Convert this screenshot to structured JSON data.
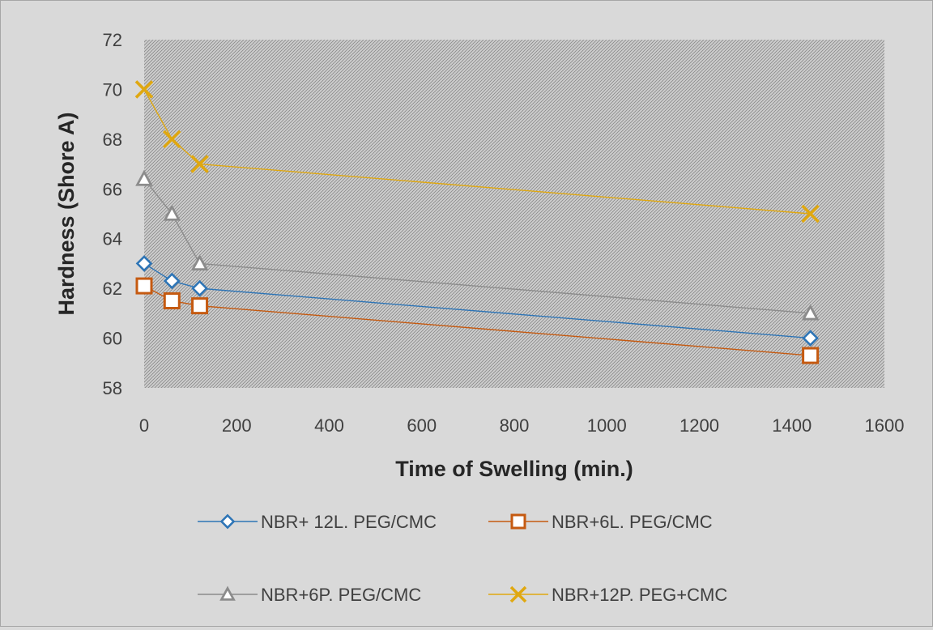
{
  "chart_data": {
    "type": "line",
    "title": "",
    "xlabel": "Time of Swelling (min.)",
    "ylabel": "Hardness (Shore A)",
    "xlim": [
      0,
      1600
    ],
    "ylim": [
      58,
      72
    ],
    "x_ticks": [
      0,
      200,
      400,
      600,
      800,
      1000,
      1200,
      1400,
      1600
    ],
    "y_ticks": [
      58,
      60,
      62,
      64,
      66,
      68,
      70,
      72
    ],
    "legend_position": "bottom",
    "plot_background": "hatched",
    "series": [
      {
        "name": "NBR+ 12L. PEG/CMC",
        "color": "#2e75b6",
        "marker": "diamond",
        "points": [
          [
            0,
            63
          ],
          [
            60,
            62.3
          ],
          [
            120,
            62
          ],
          [
            1440,
            60
          ]
        ]
      },
      {
        "name": "NBR+6L. PEG/CMC",
        "color": "#c55a11",
        "marker": "square",
        "points": [
          [
            0,
            62.1
          ],
          [
            60,
            61.5
          ],
          [
            120,
            61.3
          ],
          [
            1440,
            59.3
          ]
        ]
      },
      {
        "name": "NBR+6P. PEG/CMC",
        "color": "#8c8c8c",
        "marker": "triangle",
        "points": [
          [
            0,
            66.4
          ],
          [
            60,
            65
          ],
          [
            120,
            63
          ],
          [
            1440,
            61
          ]
        ]
      },
      {
        "name": "NBR+12P. PEG+CMC",
        "color": "#e0a810",
        "marker": "x",
        "points": [
          [
            0,
            70
          ],
          [
            60,
            68
          ],
          [
            120,
            67
          ],
          [
            1440,
            65
          ]
        ]
      }
    ]
  }
}
